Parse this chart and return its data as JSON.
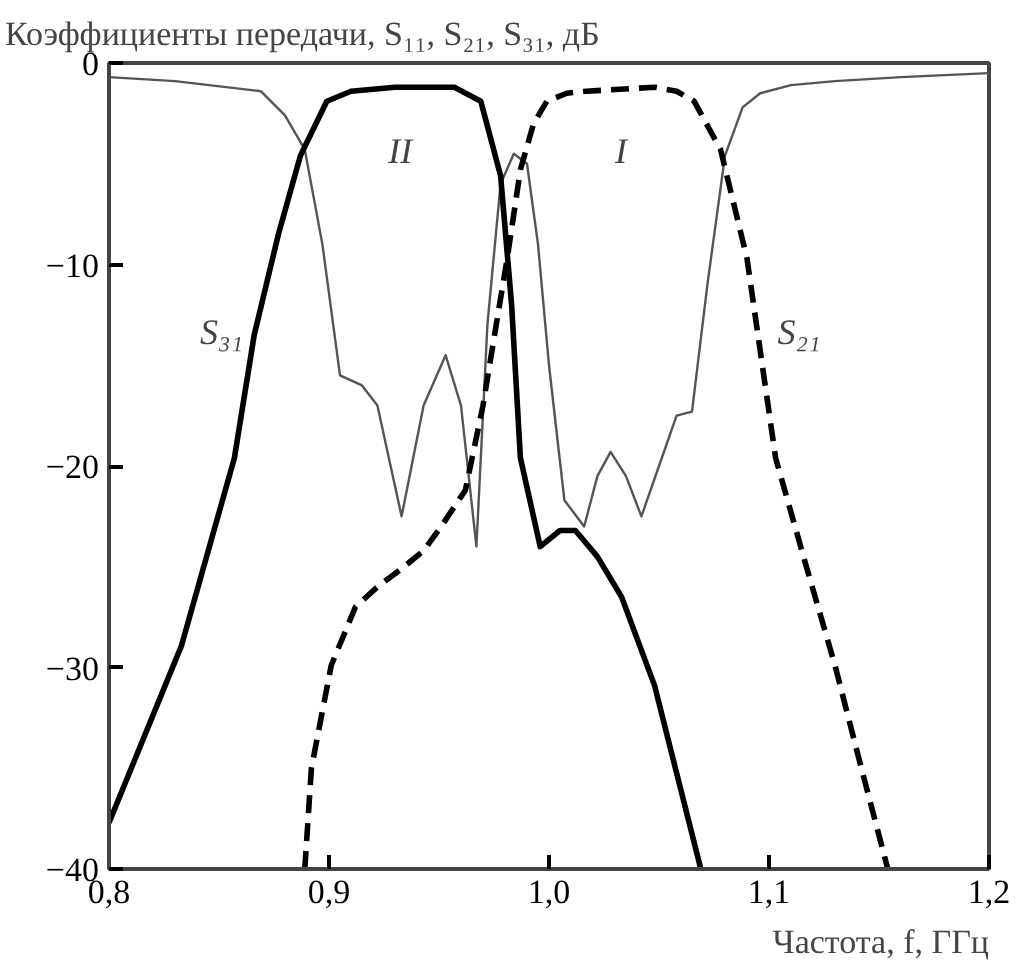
{
  "chart_data": {
    "type": "line",
    "ylabel": "Коэффициенты передачи, S₁₁, S₂₁, S₃₁, дБ",
    "xlabel": "Частота, f, ГГц",
    "xlim": [
      0.8,
      1.2
    ],
    "ylim": [
      -40,
      0
    ],
    "xticks": [
      {
        "value": 0.8,
        "label": "0,8"
      },
      {
        "value": 0.9,
        "label": "0,9"
      },
      {
        "value": 1.0,
        "label": "1,0"
      },
      {
        "value": 1.1,
        "label": "1,1"
      },
      {
        "value": 1.2,
        "label": "1,2"
      }
    ],
    "yticks": [
      {
        "value": -40,
        "label": "−40"
      },
      {
        "value": -30,
        "label": "−30"
      },
      {
        "value": -20,
        "label": "−20"
      },
      {
        "value": -10,
        "label": "−10"
      },
      0
    ],
    "grid": false,
    "series": [
      {
        "color": "#555555",
        "line_style": "solid",
        "x": [
          0.8,
          0.83,
          0.869,
          0.88,
          0.889,
          0.897,
          0.905,
          0.915,
          0.922,
          0.933,
          0.943,
          0.953,
          0.96,
          0.967,
          0.972,
          0.978,
          0.984,
          0.99,
          0.995,
          1.0,
          1.007,
          1.016,
          1.022,
          1.028,
          1.035,
          1.042,
          1.05,
          1.058,
          1.065,
          1.072,
          1.08,
          1.088,
          1.096,
          1.11,
          1.13,
          1.16,
          1.2
        ],
        "values": [
          -0.7,
          -0.9,
          -1.4,
          -2.6,
          -4.3,
          -9,
          -15.5,
          -16,
          -17,
          -22.5,
          -17,
          -14.5,
          -17,
          -24,
          -13,
          -6,
          -4.5,
          -5,
          -9,
          -15,
          -21.7,
          -23,
          -20.5,
          -19.3,
          -20.5,
          -22.5,
          -20,
          -17.5,
          -17.3,
          -11,
          -4.6,
          -2.2,
          -1.5,
          -1.1,
          -0.9,
          -0.7,
          -0.5
        ]
      },
      {
        "name": "S₃₁",
        "color": "#000000",
        "line_style": "solid",
        "x": [
          0.8,
          0.833,
          0.857,
          0.866,
          0.877,
          0.887,
          0.899,
          0.91,
          0.93,
          0.957,
          0.969,
          0.978,
          0.983,
          0.987,
          0.996,
          1.005,
          1.012,
          1.022,
          1.033,
          1.048,
          1.069
        ],
        "values": [
          -37.7,
          -28.9,
          -19.6,
          -13.5,
          -8.5,
          -4.6,
          -1.9,
          -1.4,
          -1.2,
          -1.2,
          -1.9,
          -5.6,
          -12,
          -19.6,
          -24,
          -23.2,
          -23.2,
          -24.5,
          -26.5,
          -30.9,
          -40
        ]
      },
      {
        "name": "S₂₁",
        "color": "#000000",
        "line_style": "dashed",
        "x": [
          0.889,
          0.892,
          0.901,
          0.912,
          0.922,
          0.933,
          0.943,
          0.951,
          0.962,
          0.97,
          0.976,
          0.981,
          0.987,
          0.993,
          0.999,
          1.008,
          1.017,
          1.048,
          1.058,
          1.066,
          1.078,
          1.09,
          1.103,
          1.117,
          1.13,
          1.142,
          1.154
        ],
        "values": [
          -40,
          -35,
          -29.9,
          -27,
          -26,
          -25.1,
          -24.2,
          -23,
          -21.2,
          -17,
          -13,
          -9.7,
          -5.3,
          -3,
          -1.9,
          -1.5,
          -1.4,
          -1.2,
          -1.4,
          -1.9,
          -4.3,
          -9.7,
          -19.6,
          -25,
          -29.9,
          -35,
          -40
        ]
      }
    ],
    "annotations": [
      "II",
      "I"
    ]
  }
}
